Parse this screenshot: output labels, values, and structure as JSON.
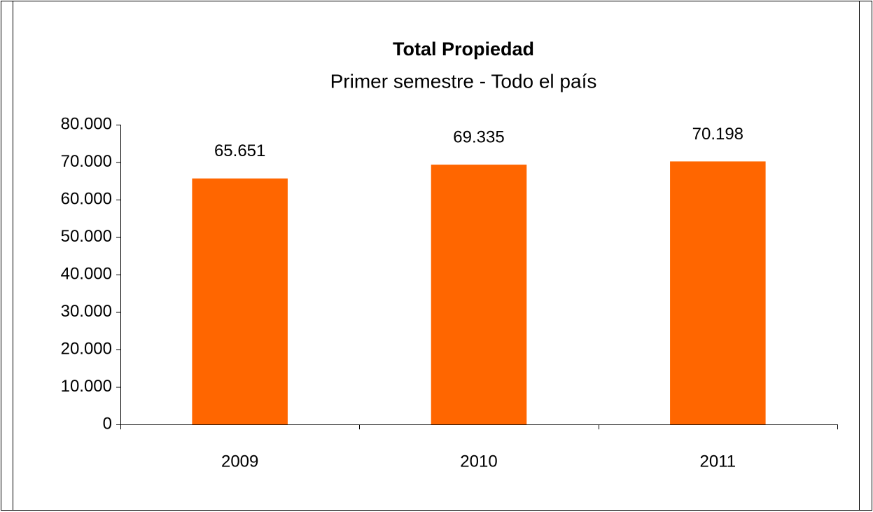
{
  "chart_data": {
    "type": "bar",
    "title": "Total Propiedad",
    "subtitle": "Primer semestre - Todo el país",
    "categories": [
      "2009",
      "2010",
      "2011"
    ],
    "values": [
      65651,
      69335,
      70198
    ],
    "value_labels": [
      "65.651",
      "69.335",
      "70.198"
    ],
    "color": "#ff6600",
    "ylim": [
      0,
      80000
    ],
    "yticks": [
      0,
      {
        "value": 10000,
        "label": "10.000"
      },
      {
        "value": 20000,
        "label": "20.000"
      },
      {
        "value": 30000,
        "label": "30.000"
      },
      {
        "value": 40000,
        "label": "40.000"
      },
      {
        "value": 50000,
        "label": "50.000"
      },
      {
        "value": 60000,
        "label": "60.000"
      },
      {
        "value": 70000,
        "label": "70.000"
      },
      {
        "value": 80000,
        "label": "80.000"
      }
    ],
    "grid": false
  }
}
